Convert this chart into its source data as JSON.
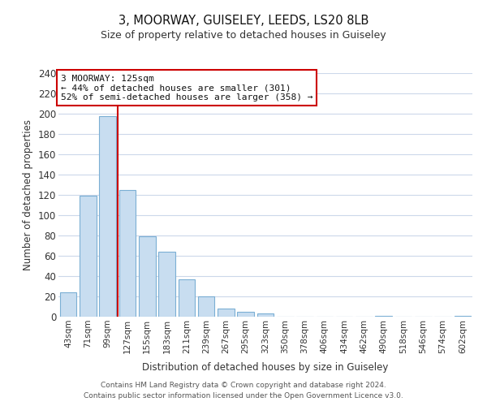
{
  "title": "3, MOORWAY, GUISELEY, LEEDS, LS20 8LB",
  "subtitle": "Size of property relative to detached houses in Guiseley",
  "xlabel": "Distribution of detached houses by size in Guiseley",
  "ylabel": "Number of detached properties",
  "bar_labels": [
    "43sqm",
    "71sqm",
    "99sqm",
    "127sqm",
    "155sqm",
    "183sqm",
    "211sqm",
    "239sqm",
    "267sqm",
    "295sqm",
    "323sqm",
    "350sqm",
    "378sqm",
    "406sqm",
    "434sqm",
    "462sqm",
    "490sqm",
    "518sqm",
    "546sqm",
    "574sqm",
    "602sqm"
  ],
  "bar_values": [
    24,
    119,
    198,
    125,
    79,
    64,
    37,
    20,
    8,
    5,
    3,
    0,
    0,
    0,
    0,
    0,
    1,
    0,
    0,
    0,
    1
  ],
  "bar_color": "#c8ddf0",
  "bar_edge_color": "#7bafd4",
  "vline_color": "#cc0000",
  "ylim": [
    0,
    240
  ],
  "yticks": [
    0,
    20,
    40,
    60,
    80,
    100,
    120,
    140,
    160,
    180,
    200,
    220,
    240
  ],
  "annotation_line1": "3 MOORWAY: 125sqm",
  "annotation_line2": "← 44% of detached houses are smaller (301)",
  "annotation_line3": "52% of semi-detached houses are larger (358) →",
  "annotation_box_color": "#ffffff",
  "annotation_box_edge_color": "#cc0000",
  "footer_line1": "Contains HM Land Registry data © Crown copyright and database right 2024.",
  "footer_line2": "Contains public sector information licensed under the Open Government Licence v3.0.",
  "background_color": "#ffffff",
  "grid_color": "#ccd8ea"
}
